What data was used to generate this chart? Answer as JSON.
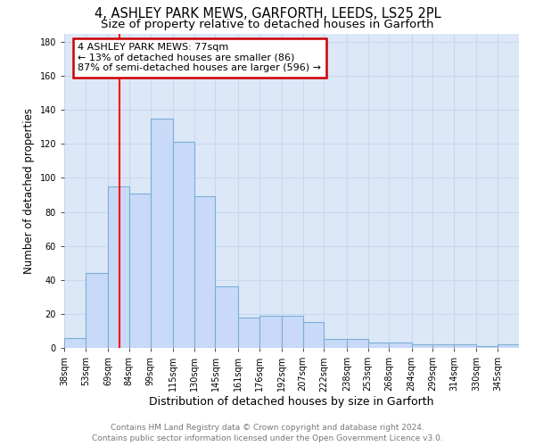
{
  "title": "4, ASHLEY PARK MEWS, GARFORTH, LEEDS, LS25 2PL",
  "subtitle": "Size of property relative to detached houses in Garforth",
  "xlabel": "Distribution of detached houses by size in Garforth",
  "ylabel": "Number of detached properties",
  "categories": [
    "38sqm",
    "53sqm",
    "69sqm",
    "84sqm",
    "99sqm",
    "115sqm",
    "130sqm",
    "145sqm",
    "161sqm",
    "176sqm",
    "192sqm",
    "207sqm",
    "222sqm",
    "238sqm",
    "253sqm",
    "268sqm",
    "284sqm",
    "299sqm",
    "314sqm",
    "330sqm",
    "345sqm"
  ],
  "values": [
    6,
    44,
    95,
    91,
    135,
    121,
    89,
    36,
    18,
    19,
    19,
    15,
    5,
    5,
    3,
    3,
    2,
    2,
    2,
    1,
    2
  ],
  "bar_color": "#c9daf8",
  "bar_edge_color": "#7bafd4",
  "red_line_x": 77,
  "bin_edges": [
    38,
    53,
    69,
    84,
    99,
    115,
    130,
    145,
    161,
    176,
    192,
    207,
    222,
    238,
    253,
    268,
    284,
    299,
    314,
    330,
    345,
    360
  ],
  "annotation_title": "4 ASHLEY PARK MEWS: 77sqm",
  "annotation_line1": "← 13% of detached houses are smaller (86)",
  "annotation_line2": "87% of semi-detached houses are larger (596) →",
  "annotation_box_color": "#ffffff",
  "annotation_box_edge": "#cc0000",
  "ylim": [
    0,
    185
  ],
  "yticks": [
    0,
    20,
    40,
    60,
    80,
    100,
    120,
    140,
    160,
    180
  ],
  "grid_color": "#c8d8f0",
  "background_color": "#dce8f8",
  "footer_line1": "Contains HM Land Registry data © Crown copyright and database right 2024.",
  "footer_line2": "Contains public sector information licensed under the Open Government Licence v3.0.",
  "title_fontsize": 10.5,
  "subtitle_fontsize": 9.5,
  "xlabel_fontsize": 9,
  "ylabel_fontsize": 8.5,
  "tick_fontsize": 7,
  "footer_fontsize": 6.5,
  "annotation_fontsize": 8
}
